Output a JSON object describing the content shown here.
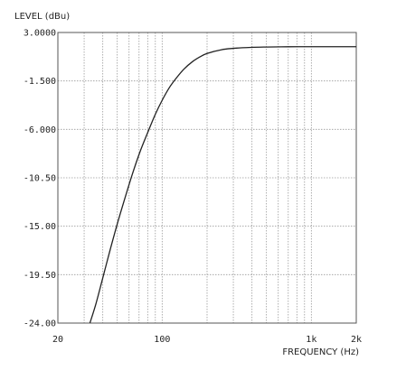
{
  "chart_data": {
    "type": "line",
    "ylabel": "LEVEL (dBu)",
    "xlabel": "FREQUENCY (Hz)",
    "x_scale": "log",
    "xlim": [
      20,
      2000
    ],
    "ylim": [
      -24,
      3
    ],
    "grid": true,
    "y_ticks": [
      {
        "value": 3,
        "label": "3.0000"
      },
      {
        "value": -1.5,
        "label": "-1.500"
      },
      {
        "value": -6,
        "label": "-6.000"
      },
      {
        "value": -10.5,
        "label": "-10.50"
      },
      {
        "value": -15,
        "label": "-15.00"
      },
      {
        "value": -19.5,
        "label": "-19.50"
      },
      {
        "value": -24,
        "label": "-24.00"
      }
    ],
    "x_tick_labels": [
      {
        "value": 20,
        "label": "20"
      },
      {
        "value": 100,
        "label": "100"
      },
      {
        "value": 1000,
        "label": "1k"
      },
      {
        "value": 2000,
        "label": "2k"
      }
    ],
    "x_grid": [
      20,
      30,
      40,
      50,
      60,
      70,
      80,
      90,
      100,
      200,
      300,
      400,
      500,
      600,
      700,
      800,
      900,
      1000,
      2000
    ],
    "series": [
      {
        "x": [
          32.8,
          36,
          40,
          45,
          50,
          56,
          63,
          71,
          80,
          90,
          100,
          112,
          125,
          140,
          160,
          180,
          200,
          250,
          315,
          400,
          500,
          630,
          800,
          1000,
          1250,
          1600,
          2000
        ],
        "y": [
          -24,
          -22.2,
          -19.8,
          -17.1,
          -14.8,
          -12.5,
          -10.2,
          -8.1,
          -6.3,
          -4.6,
          -3.3,
          -2.1,
          -1.2,
          -0.4,
          0.3,
          0.75,
          1.05,
          1.4,
          1.55,
          1.62,
          1.65,
          1.67,
          1.68,
          1.68,
          1.68,
          1.68,
          1.68
        ]
      }
    ]
  }
}
